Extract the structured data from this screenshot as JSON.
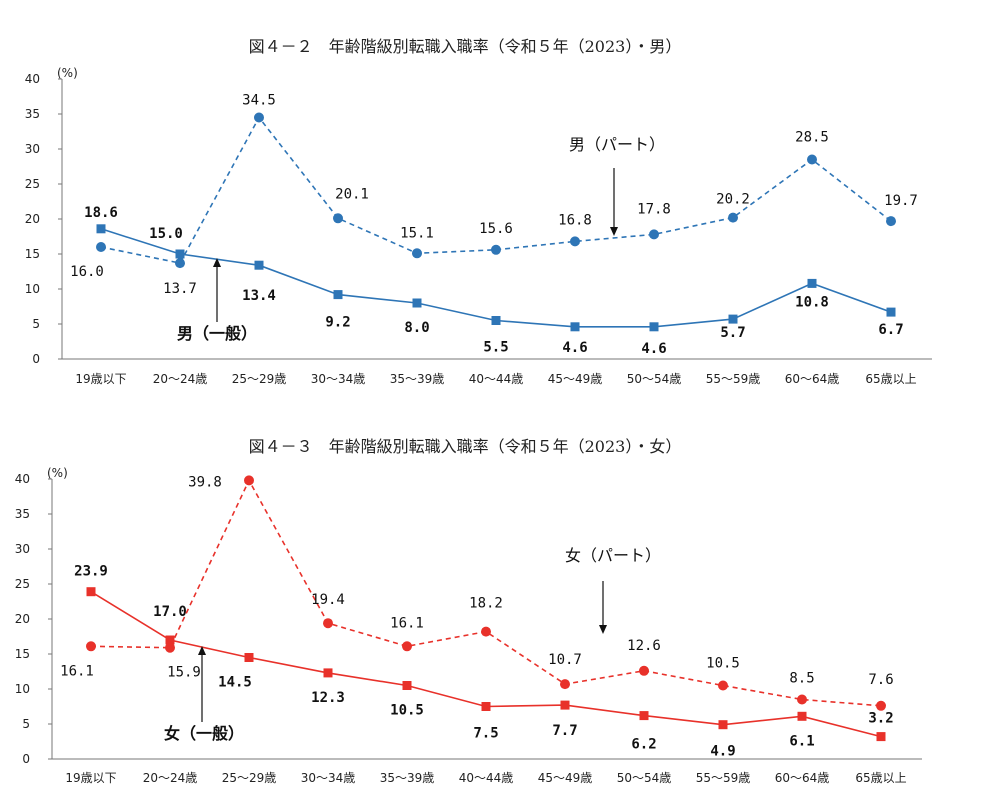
{
  "chart_data": [
    {
      "type": "line",
      "title": "図４－２　年齢階級別転職入職率（令和５年（2023）・男）",
      "ylabel": "(%)",
      "ylim": [
        0,
        40
      ],
      "yticks": [
        0,
        5,
        10,
        15,
        20,
        25,
        30,
        35,
        40
      ],
      "categories": [
        "19歳以下",
        "20～24歳",
        "25～29歳",
        "30～34歳",
        "35～39歳",
        "40～44歳",
        "45～49歳",
        "50～54歳",
        "55～59歳",
        "60～64歳",
        "65歳以上"
      ],
      "series": [
        {
          "name": "男（一般）",
          "style": "solid",
          "marker": "square",
          "color": "#2E75B6",
          "values": [
            18.6,
            15.0,
            13.4,
            9.2,
            8.0,
            5.5,
            4.6,
            4.6,
            5.7,
            10.8,
            6.7
          ],
          "labels": [
            "18.6",
            "15.0",
            "13.4",
            "9.2",
            "8.0",
            "5.5",
            "4.6",
            "4.6",
            "5.7",
            "10.8",
            "6.7"
          ]
        },
        {
          "name": "男（パート）",
          "style": "dashed",
          "marker": "circle",
          "color": "#2E75B6",
          "values": [
            16.0,
            13.7,
            34.5,
            20.1,
            15.1,
            15.6,
            16.8,
            17.8,
            20.2,
            28.5,
            19.7
          ],
          "labels": [
            "16.0",
            "13.7",
            "34.5",
            "20.1",
            "15.1",
            "15.6",
            "16.8",
            "17.8",
            "20.2",
            "28.5",
            "19.7"
          ]
        }
      ],
      "annotations": {
        "general": "男（一般）",
        "part": "男（パート）"
      },
      "grid": false,
      "legend": "none"
    },
    {
      "type": "line",
      "title": "図４－３　年齢階級別転職入職率（令和５年（2023）・女）",
      "ylabel": "(%)",
      "ylim": [
        0,
        40
      ],
      "yticks": [
        0,
        5,
        10,
        15,
        20,
        25,
        30,
        35,
        40
      ],
      "categories": [
        "19歳以下",
        "20～24歳",
        "25～29歳",
        "30～34歳",
        "35～39歳",
        "40～44歳",
        "45～49歳",
        "50～54歳",
        "55～59歳",
        "60～64歳",
        "65歳以上"
      ],
      "series": [
        {
          "name": "女（一般）",
          "style": "solid",
          "marker": "square",
          "color": "#E8312A",
          "values": [
            23.9,
            17.0,
            14.5,
            12.3,
            10.5,
            7.5,
            7.7,
            6.2,
            4.9,
            6.1,
            3.2
          ],
          "labels": [
            "23.9",
            "17.0",
            "14.5",
            "12.3",
            "10.5",
            "7.5",
            "7.7",
            "6.2",
            "4.9",
            "6.1",
            "3.2"
          ]
        },
        {
          "name": "女（パート）",
          "style": "dashed",
          "marker": "circle",
          "color": "#E8312A",
          "values": [
            16.1,
            15.9,
            39.8,
            19.4,
            16.1,
            18.2,
            10.7,
            12.6,
            10.5,
            8.5,
            7.6
          ],
          "labels": [
            "16.1",
            "15.9",
            "39.8",
            "19.4",
            "16.1",
            "18.2",
            "10.7",
            "12.6",
            "10.5",
            "8.5",
            "7.6"
          ]
        }
      ],
      "annotations": {
        "general": "女（一般）",
        "part": "女（パート）"
      },
      "grid": false,
      "legend": "none"
    }
  ]
}
